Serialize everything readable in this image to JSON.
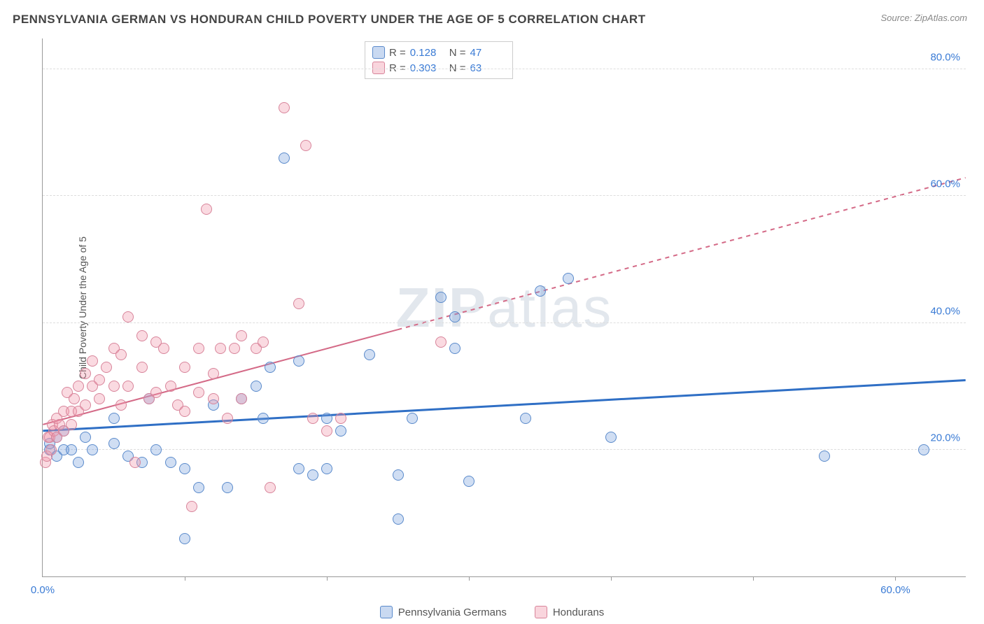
{
  "title": "PENNSYLVANIA GERMAN VS HONDURAN CHILD POVERTY UNDER THE AGE OF 5 CORRELATION CHART",
  "source": "Source: ZipAtlas.com",
  "ylabel": "Child Poverty Under the Age of 5",
  "watermark_bold": "ZIP",
  "watermark_rest": "atlas",
  "chart": {
    "type": "scatter",
    "xlim": [
      0,
      65
    ],
    "ylim": [
      0,
      85
    ],
    "yticks": [
      {
        "v": 20,
        "l": "20.0%"
      },
      {
        "v": 40,
        "l": "40.0%"
      },
      {
        "v": 60,
        "l": "60.0%"
      },
      {
        "v": 80,
        "l": "80.0%"
      }
    ],
    "xticks": [
      {
        "v": 0,
        "l": "0.0%"
      },
      {
        "v": 60,
        "l": "60.0%"
      }
    ],
    "xtick_marks": [
      10,
      20,
      30,
      40,
      50,
      60
    ],
    "background_color": "#ffffff",
    "grid_color": "#dddddd",
    "marker_size": 16,
    "series": [
      {
        "name": "Pennsylvania Germans",
        "color_fill": "rgba(120,160,220,0.35)",
        "color_stroke": "#5a8acb",
        "r": 0.128,
        "n": 47,
        "trend": {
          "type": "solid",
          "color": "#2f6fc5",
          "width": 3,
          "y_at_x0": 23,
          "y_at_xmax": 31
        },
        "points": [
          [
            0.5,
            20
          ],
          [
            0.5,
            21
          ],
          [
            1,
            19
          ],
          [
            1,
            22
          ],
          [
            1.5,
            20
          ],
          [
            1.5,
            23
          ],
          [
            2,
            20
          ],
          [
            2.5,
            18
          ],
          [
            3,
            22
          ],
          [
            3.5,
            20
          ],
          [
            5,
            21
          ],
          [
            5,
            25
          ],
          [
            6,
            19
          ],
          [
            7,
            18
          ],
          [
            7.5,
            28
          ],
          [
            8,
            20
          ],
          [
            9,
            18
          ],
          [
            10,
            6
          ],
          [
            10,
            17
          ],
          [
            11,
            14
          ],
          [
            12,
            27
          ],
          [
            13,
            14
          ],
          [
            14,
            28
          ],
          [
            15,
            30
          ],
          [
            15.5,
            25
          ],
          [
            16,
            33
          ],
          [
            17,
            66
          ],
          [
            18,
            17
          ],
          [
            18,
            34
          ],
          [
            19,
            16
          ],
          [
            20,
            17
          ],
          [
            20,
            25
          ],
          [
            21,
            23
          ],
          [
            23,
            35
          ],
          [
            25,
            9
          ],
          [
            25,
            16
          ],
          [
            26,
            25
          ],
          [
            28,
            44
          ],
          [
            29,
            36
          ],
          [
            29,
            41
          ],
          [
            30,
            15
          ],
          [
            34,
            25
          ],
          [
            35,
            45
          ],
          [
            37,
            47
          ],
          [
            40,
            22
          ],
          [
            55,
            19
          ],
          [
            62,
            20
          ]
        ]
      },
      {
        "name": "Hondurans",
        "color_fill": "rgba(240,150,170,0.35)",
        "color_stroke": "#d8849a",
        "r": 0.303,
        "n": 63,
        "trend": {
          "type": "dashed",
          "color": "#d46a87",
          "width": 2,
          "y_at_x0": 24,
          "y_at_xmax": 63
        },
        "points": [
          [
            0.2,
            18
          ],
          [
            0.3,
            19
          ],
          [
            0.4,
            22
          ],
          [
            0.5,
            22
          ],
          [
            0.6,
            20
          ],
          [
            0.7,
            24
          ],
          [
            0.8,
            23
          ],
          [
            1,
            22
          ],
          [
            1,
            25
          ],
          [
            1.2,
            24
          ],
          [
            1.5,
            23
          ],
          [
            1.5,
            26
          ],
          [
            1.7,
            29
          ],
          [
            2,
            24
          ],
          [
            2,
            26
          ],
          [
            2.2,
            28
          ],
          [
            2.5,
            30
          ],
          [
            2.5,
            26
          ],
          [
            3,
            27
          ],
          [
            3,
            32
          ],
          [
            3.5,
            30
          ],
          [
            3.5,
            34
          ],
          [
            4,
            28
          ],
          [
            4,
            31
          ],
          [
            4.5,
            33
          ],
          [
            5,
            30
          ],
          [
            5,
            36
          ],
          [
            5.5,
            35
          ],
          [
            5.5,
            27
          ],
          [
            6,
            41
          ],
          [
            6,
            30
          ],
          [
            6.5,
            18
          ],
          [
            7,
            33
          ],
          [
            7,
            38
          ],
          [
            7.5,
            28
          ],
          [
            8,
            29
          ],
          [
            8,
            37
          ],
          [
            8.5,
            36
          ],
          [
            9,
            30
          ],
          [
            9.5,
            27
          ],
          [
            10,
            26
          ],
          [
            10,
            33
          ],
          [
            10.5,
            11
          ],
          [
            11,
            29
          ],
          [
            11,
            36
          ],
          [
            11.5,
            58
          ],
          [
            12,
            28
          ],
          [
            12,
            32
          ],
          [
            12.5,
            36
          ],
          [
            13,
            25
          ],
          [
            13.5,
            36
          ],
          [
            14,
            28
          ],
          [
            14,
            38
          ],
          [
            15,
            36
          ],
          [
            15.5,
            37
          ],
          [
            16,
            14
          ],
          [
            17,
            74
          ],
          [
            18,
            43
          ],
          [
            18.5,
            68
          ],
          [
            19,
            25
          ],
          [
            20,
            23
          ],
          [
            21,
            25
          ],
          [
            28,
            37
          ]
        ]
      }
    ]
  },
  "legend": {
    "r_label": "R =",
    "n_label": "N ="
  }
}
